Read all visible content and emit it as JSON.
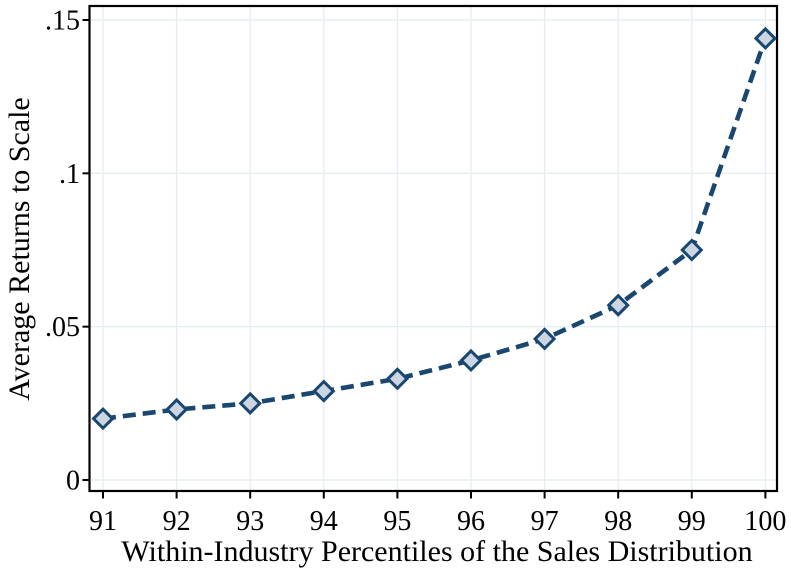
{
  "chart_data": {
    "type": "line",
    "title": "",
    "x": [
      91,
      92,
      93,
      94,
      95,
      96,
      97,
      98,
      99,
      100
    ],
    "values": [
      0.02,
      0.023,
      0.025,
      0.029,
      0.033,
      0.039,
      0.046,
      0.057,
      0.075,
      0.144
    ],
    "x_tick_labels": [
      "91",
      "92",
      "93",
      "94",
      "95",
      "96",
      "97",
      "98",
      "99",
      "100"
    ],
    "y_ticks": [
      {
        "value": 0.0,
        "label": "0"
      },
      {
        "value": 0.05,
        "label": ".05"
      },
      {
        "value": 0.1,
        "label": ".1"
      },
      {
        "value": 0.15,
        "label": ".15"
      }
    ],
    "xlabel": "Within-Industry Percentiles of the Sales Distribution",
    "ylabel": "Average Returns to Scale",
    "xlim": [
      90.8,
      100.2
    ],
    "ylim": [
      0,
      0.15
    ],
    "grid": true,
    "legend": "none",
    "line_style": "dashed",
    "marker": "diamond"
  },
  "colors": {
    "line": "#1a476f",
    "marker_fill": "#cbd6e2",
    "marker_stroke": "#1a476f",
    "grid": "#e7eef2",
    "frame": "#000000",
    "text": "#000000",
    "background": "#ffffff"
  }
}
